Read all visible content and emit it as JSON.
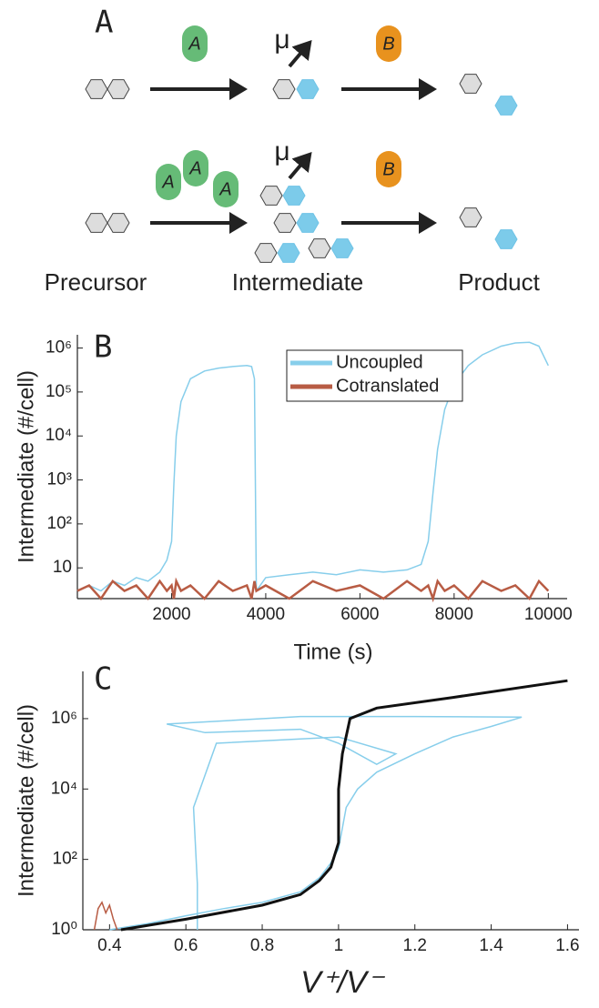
{
  "diagram": {
    "panel_label": "A",
    "rows": [
      {
        "enzyme_a": [
          "A"
        ],
        "mutation": "μ",
        "enzyme_b": "B"
      },
      {
        "enzyme_a": [
          "A",
          "A",
          "A"
        ],
        "mutation": "μ",
        "enzyme_b": "B"
      }
    ],
    "stage_labels": [
      "Precursor",
      "Intermediate",
      "Product"
    ]
  },
  "chart_data": [
    {
      "type": "line",
      "panel_label": "B",
      "x_label": "Time (s)",
      "y_label": "Intermediate (#/cell)",
      "log_y": true,
      "grid": false,
      "legend": "top-right",
      "x": [
        0,
        250,
        500,
        750,
        1000,
        1250,
        1500,
        1750,
        1900,
        2000,
        2050,
        2100,
        2200,
        2400,
        2700,
        3000,
        3300,
        3600,
        3700,
        3760,
        3800,
        4000,
        4500,
        5000,
        5500,
        6000,
        6500,
        7000,
        7300,
        7450,
        7550,
        7650,
        7800,
        8000,
        8300,
        8600,
        9000,
        9300,
        9600,
        9800,
        10000
      ],
      "series": [
        {
          "name": "Uncoupled",
          "color": "#87ceeb",
          "values": [
            3,
            4,
            3,
            5,
            4,
            6,
            5,
            8,
            15,
            40,
            800,
            10000,
            60000,
            200000,
            300000,
            350000,
            380000,
            400000,
            380000,
            200000,
            3,
            6,
            7,
            8,
            7,
            9,
            8,
            9,
            12,
            40,
            500,
            5000,
            40000,
            150000,
            400000,
            700000,
            1100000,
            1300000,
            1350000,
            1100000,
            400000
          ]
        },
        {
          "name": "Cotranslated",
          "color": "#b85c44",
          "values": [
            3,
            4,
            2,
            5,
            3,
            4,
            2,
            5,
            3,
            4,
            2,
            5,
            3,
            4,
            2,
            5,
            3,
            4,
            2,
            5,
            3,
            4,
            2,
            5,
            3,
            4,
            2,
            5,
            3,
            4,
            2,
            5,
            3,
            4,
            2,
            5,
            3,
            4,
            2,
            5,
            3
          ]
        }
      ],
      "xlim": [
        0,
        10400
      ],
      "xticks": [
        2000,
        4000,
        6000,
        8000,
        10000
      ],
      "ylim": [
        2,
        2000000
      ],
      "yticks": [
        10,
        {
          "value": 100,
          "label": "10²"
        },
        {
          "value": 1000,
          "label": "10³"
        },
        {
          "value": 10000,
          "label": "10⁴"
        },
        {
          "value": 100000,
          "label": "10⁵"
        },
        {
          "value": 1000000,
          "label": "10⁶"
        }
      ]
    },
    {
      "type": "line",
      "panel_label": "C",
      "x_label": "V⁺/V⁻",
      "y_label": "Intermediate (#/cell)",
      "log_y": true,
      "grid": false,
      "series": [
        {
          "color": "#87ceeb",
          "x": [
            0.4,
            0.5,
            0.6,
            0.7,
            0.8,
            0.9,
            0.95,
            0.98,
            1.0,
            1.02,
            1.05,
            1.1,
            1.2,
            1.3,
            1.4,
            1.48,
            1.2,
            0.9,
            0.55,
            0.65,
            0.9,
            1.0,
            1.1,
            1.15,
            1.0,
            0.68,
            0.62,
            0.63,
            0.63
          ],
          "values": [
            1,
            1.5,
            2.5,
            4,
            6,
            12,
            30,
            80,
            200,
            3000,
            10000,
            30000,
            100000,
            300000,
            600000,
            1100000,
            1150000,
            1150000,
            700000,
            400000,
            500000,
            200000,
            50000,
            100000,
            300000,
            200000,
            3000,
            20,
            1
          ]
        },
        {
          "color": "#b85c44",
          "x": [
            0.36,
            0.37,
            0.38,
            0.39,
            0.4,
            0.41,
            0.42
          ],
          "values": [
            1,
            4,
            6,
            3,
            5,
            2,
            1
          ]
        },
        {
          "color": "#111111",
          "x": [
            0.43,
            0.6,
            0.8,
            0.9,
            0.95,
            0.98,
            1.0,
            1.0,
            1.01,
            1.03,
            1.1,
            1.3,
            1.6
          ],
          "values": [
            1,
            2,
            5,
            10,
            25,
            60,
            300,
            10000,
            100000,
            1000000,
            2000000,
            4000000,
            12000000
          ]
        }
      ],
      "xlim": [
        0.33,
        1.63
      ],
      "xticks": [
        0.4,
        0.6,
        0.8,
        1,
        1.2,
        1.4,
        1.6
      ],
      "ylim": [
        1,
        22000000
      ],
      "yticks": [
        {
          "value": 1,
          "label": "10⁰"
        },
        {
          "value": 100,
          "label": "10²"
        },
        {
          "value": 10000,
          "label": "10⁴"
        },
        {
          "value": 1000000,
          "label": "10⁶"
        }
      ]
    }
  ]
}
